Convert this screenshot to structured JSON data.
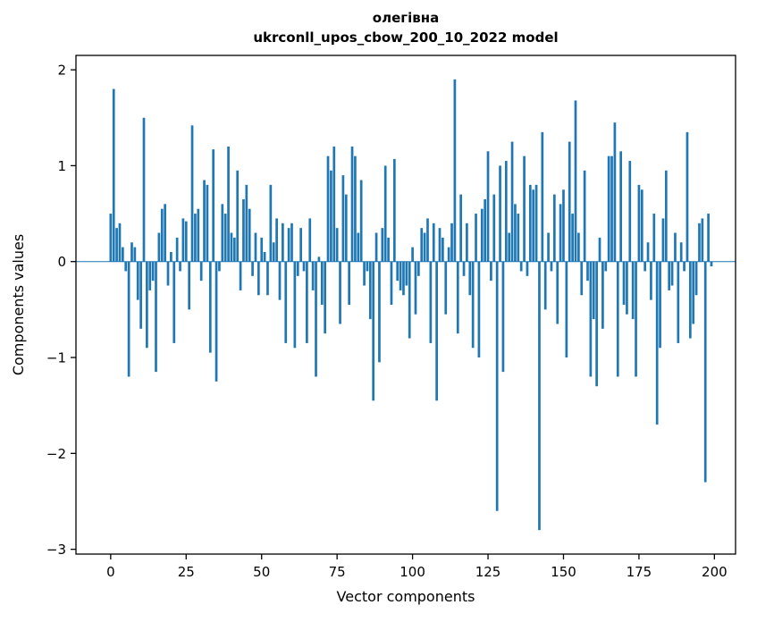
{
  "figure": {
    "title_line1": "олегівна",
    "title_line2": "ukrconll_upos_cbow_200_10_2022 model",
    "xlabel": "Vector components",
    "ylabel": "Components values"
  },
  "chart_data": {
    "type": "bar",
    "title": "олегівна\nukrconll_upos_cbow_200_10_2022 model",
    "xlabel": "Vector components",
    "ylabel": "Components values",
    "xlim": [
      -11.5,
      207
    ],
    "ylim": [
      -3.05,
      2.15
    ],
    "xticks": [
      0,
      25,
      50,
      75,
      100,
      125,
      150,
      175,
      200
    ],
    "yticks": [
      -3,
      -2,
      -1,
      0,
      1,
      2
    ],
    "grid": false,
    "legend": "none",
    "bar_color": "#1f77b4",
    "x_start": 0,
    "values": [
      0.5,
      1.8,
      0.35,
      0.4,
      0.15,
      -0.1,
      -1.2,
      0.2,
      0.15,
      -0.4,
      -0.7,
      1.5,
      -0.9,
      -0.3,
      -0.2,
      -1.15,
      0.3,
      0.55,
      0.6,
      -0.25,
      0.1,
      -0.85,
      0.25,
      -0.1,
      0.45,
      0.42,
      -0.5,
      1.42,
      0.5,
      0.55,
      -0.2,
      0.85,
      0.8,
      -0.95,
      1.17,
      -1.25,
      -0.1,
      0.6,
      0.5,
      1.2,
      0.3,
      0.25,
      0.95,
      -0.3,
      0.65,
      0.8,
      0.55,
      -0.15,
      0.3,
      -0.35,
      0.25,
      0.1,
      -0.35,
      0.8,
      0.2,
      0.45,
      -0.4,
      0.4,
      -0.85,
      0.35,
      0.4,
      -0.9,
      -0.15,
      0.35,
      -0.1,
      -0.85,
      0.45,
      -0.3,
      -1.2,
      0.05,
      -0.45,
      -0.75,
      1.1,
      0.95,
      1.2,
      0.35,
      -0.65,
      0.9,
      0.7,
      -0.45,
      1.2,
      1.1,
      0.3,
      0.85,
      -0.25,
      -0.1,
      -0.6,
      -1.45,
      0.3,
      -1.05,
      0.35,
      1.0,
      0.25,
      -0.45,
      1.07,
      -0.2,
      -0.3,
      -0.35,
      -0.25,
      -0.8,
      0.15,
      -0.55,
      -0.15,
      0.35,
      0.3,
      0.45,
      -0.85,
      0.4,
      -1.45,
      0.35,
      0.25,
      -0.55,
      0.15,
      0.4,
      1.9,
      -0.75,
      0.7,
      -0.15,
      0.4,
      -0.35,
      -0.9,
      0.5,
      -1.0,
      0.55,
      0.65,
      1.15,
      -0.2,
      0.7,
      -2.6,
      1.0,
      -1.15,
      1.05,
      0.3,
      1.25,
      0.6,
      0.5,
      -0.1,
      1.1,
      -0.15,
      0.8,
      0.75,
      0.8,
      -2.8,
      1.35,
      -0.5,
      0.3,
      -0.1,
      0.7,
      -0.65,
      0.6,
      0.75,
      -1.0,
      1.25,
      0.5,
      1.68,
      0.3,
      -0.35,
      0.95,
      -0.2,
      -1.2,
      -0.6,
      -1.3,
      0.25,
      -0.7,
      -0.1,
      1.1,
      1.1,
      1.45,
      -1.2,
      1.15,
      -0.45,
      -0.55,
      1.05,
      -0.6,
      -1.2,
      0.8,
      0.75,
      -0.1,
      0.2,
      -0.4,
      0.5,
      -1.7,
      -0.9,
      0.45,
      0.95,
      -0.3,
      -0.25,
      0.3,
      -0.85,
      0.2,
      -0.1,
      1.35,
      -0.8,
      -0.65,
      -0.35,
      0.4,
      0.45,
      -2.3,
      0.5,
      -0.05
    ]
  }
}
